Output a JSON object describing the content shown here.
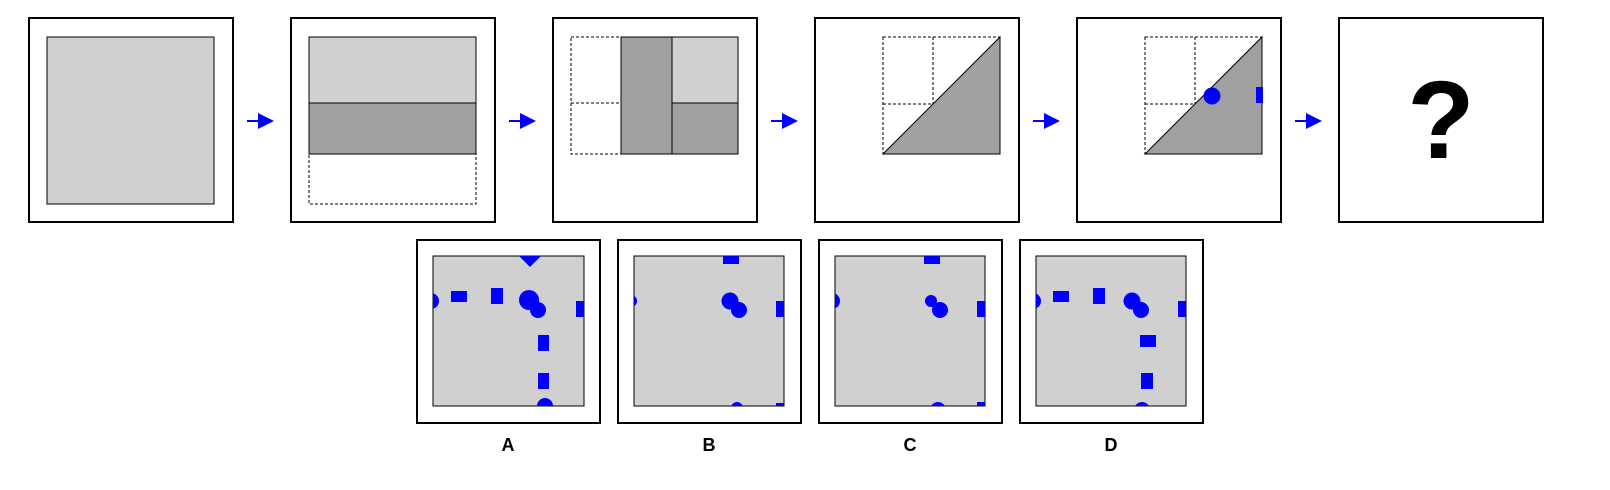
{
  "colors": {
    "paper": "#d0d0d0",
    "fold": "#a0a0a0",
    "hole": "#0000ff",
    "arrow": "#0000ff",
    "frame": "#000000"
  },
  "question_mark": "?",
  "options": [
    {
      "label": "A"
    },
    {
      "label": "B"
    },
    {
      "label": "C"
    },
    {
      "label": "D"
    }
  ]
}
